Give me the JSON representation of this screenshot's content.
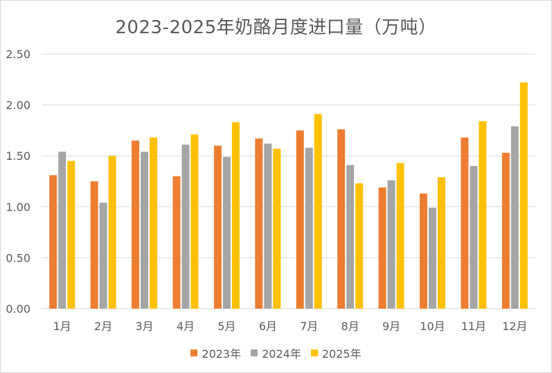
{
  "chart_data": {
    "type": "bar",
    "title": "2023-2025年奶酪月度进口量（万吨）",
    "categories": [
      "1月",
      "2月",
      "3月",
      "4月",
      "5月",
      "6月",
      "7月",
      "8月",
      "9月",
      "10月",
      "11月",
      "12月"
    ],
    "series": [
      {
        "name": "2023年",
        "color": "#ED7D31",
        "values": [
          1.31,
          1.25,
          1.65,
          1.3,
          1.6,
          1.67,
          1.75,
          1.76,
          1.19,
          1.13,
          1.68,
          1.53
        ]
      },
      {
        "name": "2024年",
        "color": "#A5A5A5",
        "values": [
          1.54,
          1.04,
          1.54,
          1.61,
          1.49,
          1.62,
          1.58,
          1.41,
          1.26,
          0.99,
          1.4,
          1.79
        ]
      },
      {
        "name": "2025年",
        "color": "#FFC000",
        "values": [
          1.45,
          1.5,
          1.68,
          1.71,
          1.83,
          1.57,
          1.91,
          1.23,
          1.43,
          1.29,
          1.84,
          2.22
        ]
      }
    ],
    "ylim": [
      0,
      2.5
    ],
    "yticks": [
      "0.00",
      "0.50",
      "1.00",
      "1.50",
      "2.00",
      "2.50"
    ],
    "xlabel": "",
    "ylabel": "",
    "grid": true,
    "legend_position": "bottom"
  }
}
